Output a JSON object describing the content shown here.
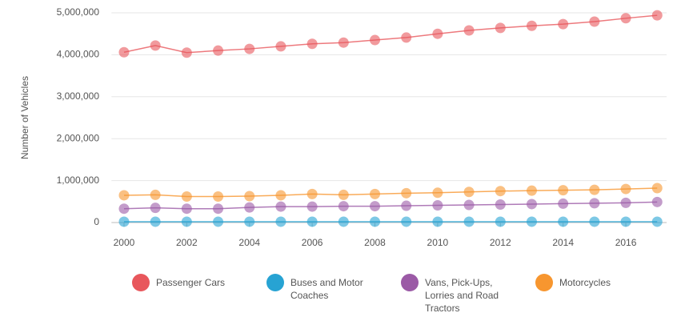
{
  "chart_data": {
    "type": "line",
    "y_label": "Number of Vehicles",
    "x": [
      2000,
      2001,
      2002,
      2003,
      2004,
      2005,
      2006,
      2007,
      2008,
      2009,
      2010,
      2011,
      2012,
      2013,
      2014,
      2015,
      2016,
      2017
    ],
    "xlim": [
      1999.6,
      2017.3
    ],
    "xticks": [
      2000,
      2002,
      2004,
      2006,
      2008,
      2010,
      2012,
      2014,
      2016
    ],
    "ylim": [
      0,
      5000000
    ],
    "yticks": [
      0,
      {
        "value": 1000000,
        "label": "1,000,000"
      },
      {
        "value": 2000000,
        "label": "2,000,000"
      },
      {
        "value": 3000000,
        "label": "3,000,000"
      },
      {
        "value": 4000000,
        "label": "4,000,000"
      },
      {
        "value": 5000000,
        "label": "5,000,000"
      }
    ],
    "grid": true,
    "legend": "bottom",
    "series": [
      {
        "name": "Passenger Cars",
        "color": "#e8575c",
        "values": [
          4060000,
          4220000,
          4050000,
          4100000,
          4140000,
          4200000,
          4260000,
          4290000,
          4350000,
          4410000,
          4500000,
          4580000,
          4640000,
          4690000,
          4730000,
          4790000,
          4870000,
          4940000
        ]
      },
      {
        "name": "Buses and Motor Coaches",
        "color": "#27a3d3",
        "values": [
          20000,
          20000,
          20000,
          20000,
          20000,
          20000,
          20000,
          20000,
          20000,
          20000,
          20000,
          20000,
          20000,
          20000,
          20000,
          20000,
          20000,
          20000
        ]
      },
      {
        "name": "Vans, Pick-Ups, Lorries and Road Tractors",
        "color": "#9b5aa6",
        "values": [
          330000,
          350000,
          330000,
          330000,
          360000,
          380000,
          380000,
          390000,
          390000,
          400000,
          410000,
          420000,
          430000,
          440000,
          450000,
          460000,
          470000,
          490000
        ]
      },
      {
        "name": "Motorcycles",
        "color": "#f7962f",
        "values": [
          650000,
          660000,
          620000,
          620000,
          630000,
          650000,
          680000,
          660000,
          680000,
          700000,
          710000,
          730000,
          750000,
          760000,
          770000,
          780000,
          800000,
          820000
        ]
      }
    ]
  }
}
